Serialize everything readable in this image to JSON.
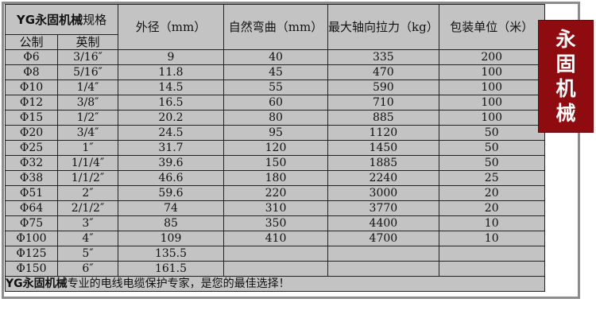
{
  "table": {
    "title_bold": "YG永固机械",
    "title_rest": "规格",
    "sub_headers": [
      "公制",
      "英制"
    ],
    "headers": [
      "外径（mm）",
      "自然弯曲（mm）",
      "最大轴向拉力（kg）",
      "包装单位（米）"
    ],
    "rows": [
      [
        "Φ6",
        "3/16″",
        "9",
        "40",
        "335",
        "200"
      ],
      [
        "Φ8",
        "5/16″",
        "11.8",
        "45",
        "470",
        "100"
      ],
      [
        "Φ10",
        "1/4″",
        "14.5",
        "55",
        "590",
        "100"
      ],
      [
        "Φ12",
        "3/8″",
        "16.5",
        "60",
        "710",
        "100"
      ],
      [
        "Φ15",
        "1/2″",
        "20.2",
        "80",
        "885",
        "100"
      ],
      [
        "Φ20",
        "3/4″",
        "24.5",
        "95",
        "1120",
        "50"
      ],
      [
        "Φ25",
        "1″",
        "31.7",
        "120",
        "1450",
        "50"
      ],
      [
        "Φ32",
        "1/1/4″",
        "39.6",
        "150",
        "1885",
        "50"
      ],
      [
        "Φ38",
        "1/1/2″",
        "46.6",
        "180",
        "2240",
        "25"
      ],
      [
        "Φ51",
        "2″",
        "59.6",
        "220",
        "3000",
        "20"
      ],
      [
        "Φ64",
        "2/1/2″",
        "74",
        "310",
        "3770",
        "20"
      ],
      [
        "Φ75",
        "3″",
        "85",
        "350",
        "4400",
        "10"
      ],
      [
        "Φ100",
        "4″",
        "109",
        "410",
        "4700",
        "10"
      ],
      [
        "Φ125",
        "5″",
        "135.5",
        "",
        "",
        ""
      ],
      [
        "Φ150",
        "6″",
        "161.5",
        "",
        "",
        ""
      ]
    ],
    "footer_bold": "YG永固机械",
    "footer_rest": "专业的电线电缆保护专家，是您的最佳选择！"
  },
  "badge": {
    "chars": [
      "永",
      "固",
      "机",
      "械"
    ],
    "color": "#8e0c10"
  },
  "colors": {
    "table_bg": "#c3c3c3",
    "frame": "#8c8c8c"
  }
}
